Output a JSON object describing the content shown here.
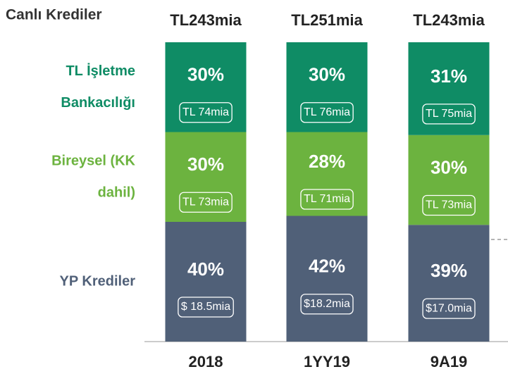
{
  "chart_data": {
    "type": "stacked_bar",
    "title": "Canlı Krediler",
    "categories": [
      "2018",
      "1YY19",
      "9A19"
    ],
    "total_labels": [
      "TL243mia",
      "TL251mia",
      "TL243mia"
    ],
    "ylim": [
      0,
      100
    ],
    "series": [
      {
        "name": "YP Krediler",
        "color": "#506078",
        "values": [
          40,
          42,
          39
        ],
        "value_labels": [
          "40%",
          "42%",
          "39%"
        ],
        "amount_labels": [
          "$ 18.5mia",
          "$18.2mia",
          "$17.0mia"
        ]
      },
      {
        "name": "Bireysel (KK dahil)",
        "color": "#6cb33f",
        "values": [
          30,
          28,
          30
        ],
        "value_labels": [
          "30%",
          "28%",
          "30%"
        ],
        "amount_labels": [
          "TL 73mia",
          "TL 71mia",
          "TL 73mia"
        ]
      },
      {
        "name": "TL İşletme Bankacılığı",
        "color": "#0f8c65",
        "values": [
          30,
          30,
          31
        ],
        "value_labels": [
          "30%",
          "30%",
          "31%"
        ],
        "amount_labels": [
          "TL 74mia",
          "TL 76mia",
          "TL 75mia"
        ]
      }
    ]
  }
}
